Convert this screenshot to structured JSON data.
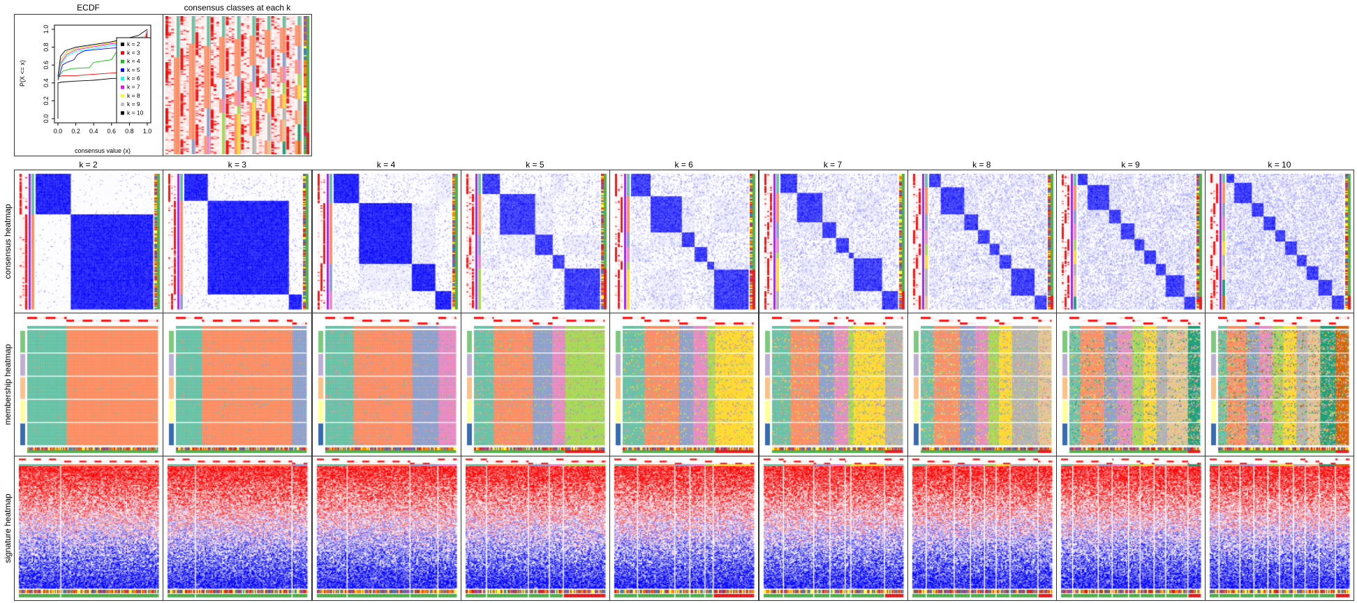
{
  "panels": {
    "ecdf_title": "ECDF",
    "classes_title": "consensus classes at each k",
    "row_labels": [
      "consensus heatmap",
      "membership heatmap",
      "signature heatmap"
    ],
    "k_labels": [
      "k = 2",
      "k = 3",
      "k = 4",
      "k = 5",
      "k = 6",
      "k = 7",
      "k = 8",
      "k = 9",
      "k = 10"
    ]
  },
  "colors": {
    "classes": [
      "#66C2A5",
      "#FC8D62",
      "#8DA0CB",
      "#E78AC3",
      "#A6D854",
      "#FFD92F",
      "#B3B3B3",
      "#E5C494",
      "#1B9E77",
      "#D95F02"
    ],
    "groups": [
      "#7FC97F",
      "#BEAED4",
      "#FDC086",
      "#FFFF99",
      "#386CB0"
    ],
    "consensus_high": "#0000FF",
    "silhouette": "#FF0000",
    "signature_low": "#0000FF",
    "signature_high": "#FF0000"
  },
  "chart_data": [
    {
      "type": "line",
      "title": "ECDF",
      "xlabel": "consensus value (x)",
      "ylabel": "P(X <= x)",
      "xlim": [
        0,
        1
      ],
      "ylim": [
        0,
        1
      ],
      "xticks": [
        "0.0",
        "0.2",
        "0.4",
        "0.6",
        "0.8",
        "1.0"
      ],
      "yticks": [
        "0.0",
        "0.2",
        "0.4",
        "0.6",
        "0.8",
        "1.0"
      ],
      "legend_position": "right",
      "series": [
        {
          "name": "k = 2",
          "color": "#000000",
          "points": [
            [
              0,
              0
            ],
            [
              0,
              0.4
            ],
            [
              0.05,
              0.41
            ],
            [
              0.2,
              0.42
            ],
            [
              0.4,
              0.43
            ],
            [
              0.6,
              0.45
            ],
            [
              0.97,
              0.46
            ],
            [
              1,
              1
            ]
          ]
        },
        {
          "name": "k = 3",
          "color": "#FF0000",
          "points": [
            [
              0,
              0.45
            ],
            [
              0.01,
              0.47
            ],
            [
              0.05,
              0.48
            ],
            [
              0.2,
              0.48
            ],
            [
              0.3,
              0.49
            ],
            [
              0.6,
              0.51
            ],
            [
              0.97,
              0.53
            ],
            [
              1,
              1
            ]
          ]
        },
        {
          "name": "k = 4",
          "color": "#00CD00",
          "points": [
            [
              0,
              0.45
            ],
            [
              0.05,
              0.53
            ],
            [
              0.15,
              0.56
            ],
            [
              0.35,
              0.57
            ],
            [
              0.4,
              0.63
            ],
            [
              0.6,
              0.66
            ],
            [
              0.65,
              0.74
            ],
            [
              0.8,
              0.78
            ],
            [
              0.97,
              0.85
            ],
            [
              1,
              1
            ]
          ]
        },
        {
          "name": "k = 5",
          "color": "#0000FF",
          "points": [
            [
              0,
              0.43
            ],
            [
              0.05,
              0.6
            ],
            [
              0.1,
              0.63
            ],
            [
              0.18,
              0.66
            ],
            [
              0.22,
              0.72
            ],
            [
              0.3,
              0.76
            ],
            [
              0.6,
              0.79
            ],
            [
              0.97,
              0.81
            ],
            [
              1,
              1
            ]
          ]
        },
        {
          "name": "k = 6",
          "color": "#00FFFF",
          "points": [
            [
              0,
              0.45
            ],
            [
              0.03,
              0.6
            ],
            [
              0.1,
              0.7
            ],
            [
              0.2,
              0.75
            ],
            [
              0.6,
              0.82
            ],
            [
              0.97,
              0.85
            ],
            [
              1,
              1
            ]
          ]
        },
        {
          "name": "k = 7",
          "color": "#FF00FF",
          "points": [
            [
              0,
              0.45
            ],
            [
              0.03,
              0.62
            ],
            [
              0.1,
              0.72
            ],
            [
              0.2,
              0.77
            ],
            [
              0.6,
              0.84
            ],
            [
              0.97,
              0.87
            ],
            [
              1,
              1
            ]
          ]
        },
        {
          "name": "k = 8",
          "color": "#FFFF00",
          "points": [
            [
              0,
              0.46
            ],
            [
              0.03,
              0.64
            ],
            [
              0.1,
              0.74
            ],
            [
              0.2,
              0.78
            ],
            [
              0.6,
              0.85
            ],
            [
              0.97,
              0.9
            ],
            [
              1,
              1
            ]
          ]
        },
        {
          "name": "k = 9",
          "color": "#BEBEBE",
          "points": [
            [
              0,
              0.47
            ],
            [
              0.03,
              0.66
            ],
            [
              0.1,
              0.75
            ],
            [
              0.2,
              0.79
            ],
            [
              0.6,
              0.86
            ],
            [
              0.97,
              0.92
            ],
            [
              1,
              1
            ]
          ]
        },
        {
          "name": "k = 10",
          "color": "#000000",
          "points": [
            [
              0,
              0.47
            ],
            [
              0.03,
              0.7
            ],
            [
              0.08,
              0.76
            ],
            [
              0.2,
              0.8
            ],
            [
              0.6,
              0.86
            ],
            [
              0.9,
              0.93
            ],
            [
              1,
              1
            ]
          ]
        }
      ]
    },
    {
      "type": "heatmap",
      "title": "consensus heatmap / membership heatmap / signature heatmap",
      "k": [
        2,
        3,
        4,
        5,
        6,
        7,
        8,
        9,
        10
      ],
      "cluster_fractions": [
        [
          0.3,
          0.7
        ],
        [
          0.2,
          0.69,
          0.11
        ],
        [
          0.22,
          0.45,
          0.2,
          0.13
        ],
        [
          0.15,
          0.3,
          0.15,
          0.1,
          0.3
        ],
        [
          0.17,
          0.27,
          0.11,
          0.11,
          0.06,
          0.28
        ],
        [
          0.14,
          0.22,
          0.12,
          0.11,
          0.04,
          0.24,
          0.13
        ],
        [
          0.1,
          0.2,
          0.12,
          0.1,
          0.08,
          0.1,
          0.2,
          0.1
        ],
        [
          0.08,
          0.18,
          0.1,
          0.12,
          0.08,
          0.1,
          0.08,
          0.16,
          0.1
        ],
        [
          0.07,
          0.15,
          0.1,
          0.1,
          0.08,
          0.1,
          0.08,
          0.1,
          0.12,
          0.1
        ]
      ]
    }
  ]
}
